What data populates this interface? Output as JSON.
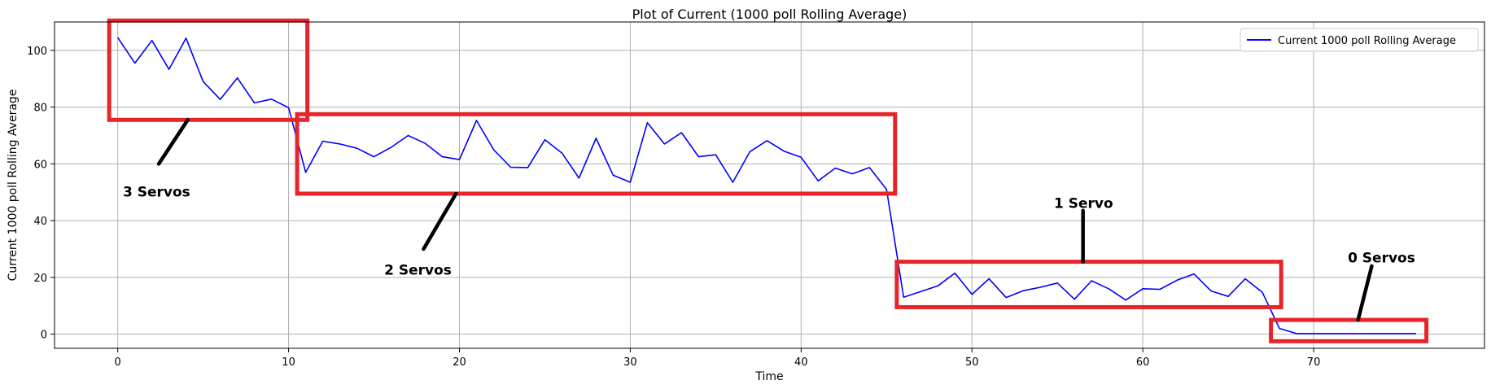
{
  "chart_data": {
    "type": "line",
    "title": "Plot of Current (1000 poll Rolling Average)",
    "xlabel": "Time",
    "ylabel": "Current 1000 poll Rolling Average",
    "xlim": [
      -3.7,
      80
    ],
    "ylim": [
      -5,
      110
    ],
    "xticks": [
      0,
      10,
      20,
      30,
      40,
      50,
      60,
      70
    ],
    "yticks": [
      0,
      20,
      40,
      60,
      80,
      100
    ],
    "grid": true,
    "legend_position": "top-right",
    "series": [
      {
        "name": "Current 1000 poll Rolling Average",
        "color": "#0000ff",
        "x": [
          0,
          1,
          2,
          3,
          4,
          5,
          6,
          7,
          8,
          9,
          10,
          11,
          12,
          13,
          14,
          15,
          16,
          17,
          18,
          19,
          20,
          21,
          22,
          23,
          24,
          25,
          26,
          27,
          28,
          29,
          30,
          31,
          32,
          33,
          34,
          35,
          36,
          37,
          38,
          39,
          40,
          41,
          42,
          43,
          44,
          45,
          46,
          47,
          48,
          49,
          50,
          51,
          52,
          53,
          54,
          55,
          56,
          57,
          58,
          59,
          60,
          61,
          62,
          63,
          64,
          65,
          66,
          67,
          68,
          69,
          70,
          71,
          72,
          73,
          74,
          75,
          76
        ],
        "y": [
          104.5,
          95.5,
          103.5,
          93.3,
          104.3,
          89,
          82.7,
          90.3,
          81.5,
          82.8,
          79.8,
          57,
          68,
          67,
          65.5,
          62.5,
          65.8,
          70,
          67.2,
          62.5,
          61.5,
          75.3,
          65,
          58.8,
          58.7,
          68.5,
          63.8,
          55,
          69,
          56,
          53.5,
          74.5,
          67,
          71,
          62.5,
          63.2,
          53.5,
          64.3,
          68.2,
          64.5,
          62.3,
          54,
          58.5,
          56.5,
          58.7,
          51,
          13,
          15,
          17,
          21.5,
          14,
          19.5,
          12.9,
          15.3,
          16.5,
          18,
          12.3,
          18.8,
          16,
          12,
          16,
          15.8,
          19,
          21.2,
          15.2,
          13.3,
          19.5,
          14.7,
          2,
          0.2,
          0.2,
          0.2,
          0.2,
          0.2,
          0.2,
          0.2,
          0.2
        ]
      }
    ],
    "annotations": [
      {
        "text": "3 Servos",
        "box": {
          "x0": -0.5,
          "x1": 11.1,
          "y0": 75.5,
          "y1": 110.5
        },
        "leader": {
          "x0": 2.4,
          "y0": 60,
          "x1": 4.1,
          "y1": 75.5
        },
        "label_at": {
          "x": 0.3,
          "y": 48.5
        }
      },
      {
        "text": "2 Servos",
        "box": {
          "x0": 10.5,
          "x1": 45.5,
          "y0": 49.5,
          "y1": 77.5
        },
        "leader": {
          "x0": 17.9,
          "y0": 30,
          "x1": 19.8,
          "y1": 49.5
        },
        "label_at": {
          "x": 15.6,
          "y": 21
        }
      },
      {
        "text": "1 Servo",
        "box": {
          "x0": 45.6,
          "x1": 68.1,
          "y0": 9.5,
          "y1": 25.5
        },
        "leader": {
          "x0": 56.5,
          "y0": 25.5,
          "x1": 56.5,
          "y1": 43.5
        },
        "label_at": {
          "x": 54.8,
          "y": 44.5
        }
      },
      {
        "text": "0 Servos",
        "box": {
          "x0": 67.5,
          "x1": 76.6,
          "y0": -2.5,
          "y1": 5
        },
        "leader": {
          "x0": 72.6,
          "y0": 5,
          "x1": 73.4,
          "y1": 24
        },
        "label_at": {
          "x": 72.0,
          "y": 25.3
        }
      }
    ]
  }
}
